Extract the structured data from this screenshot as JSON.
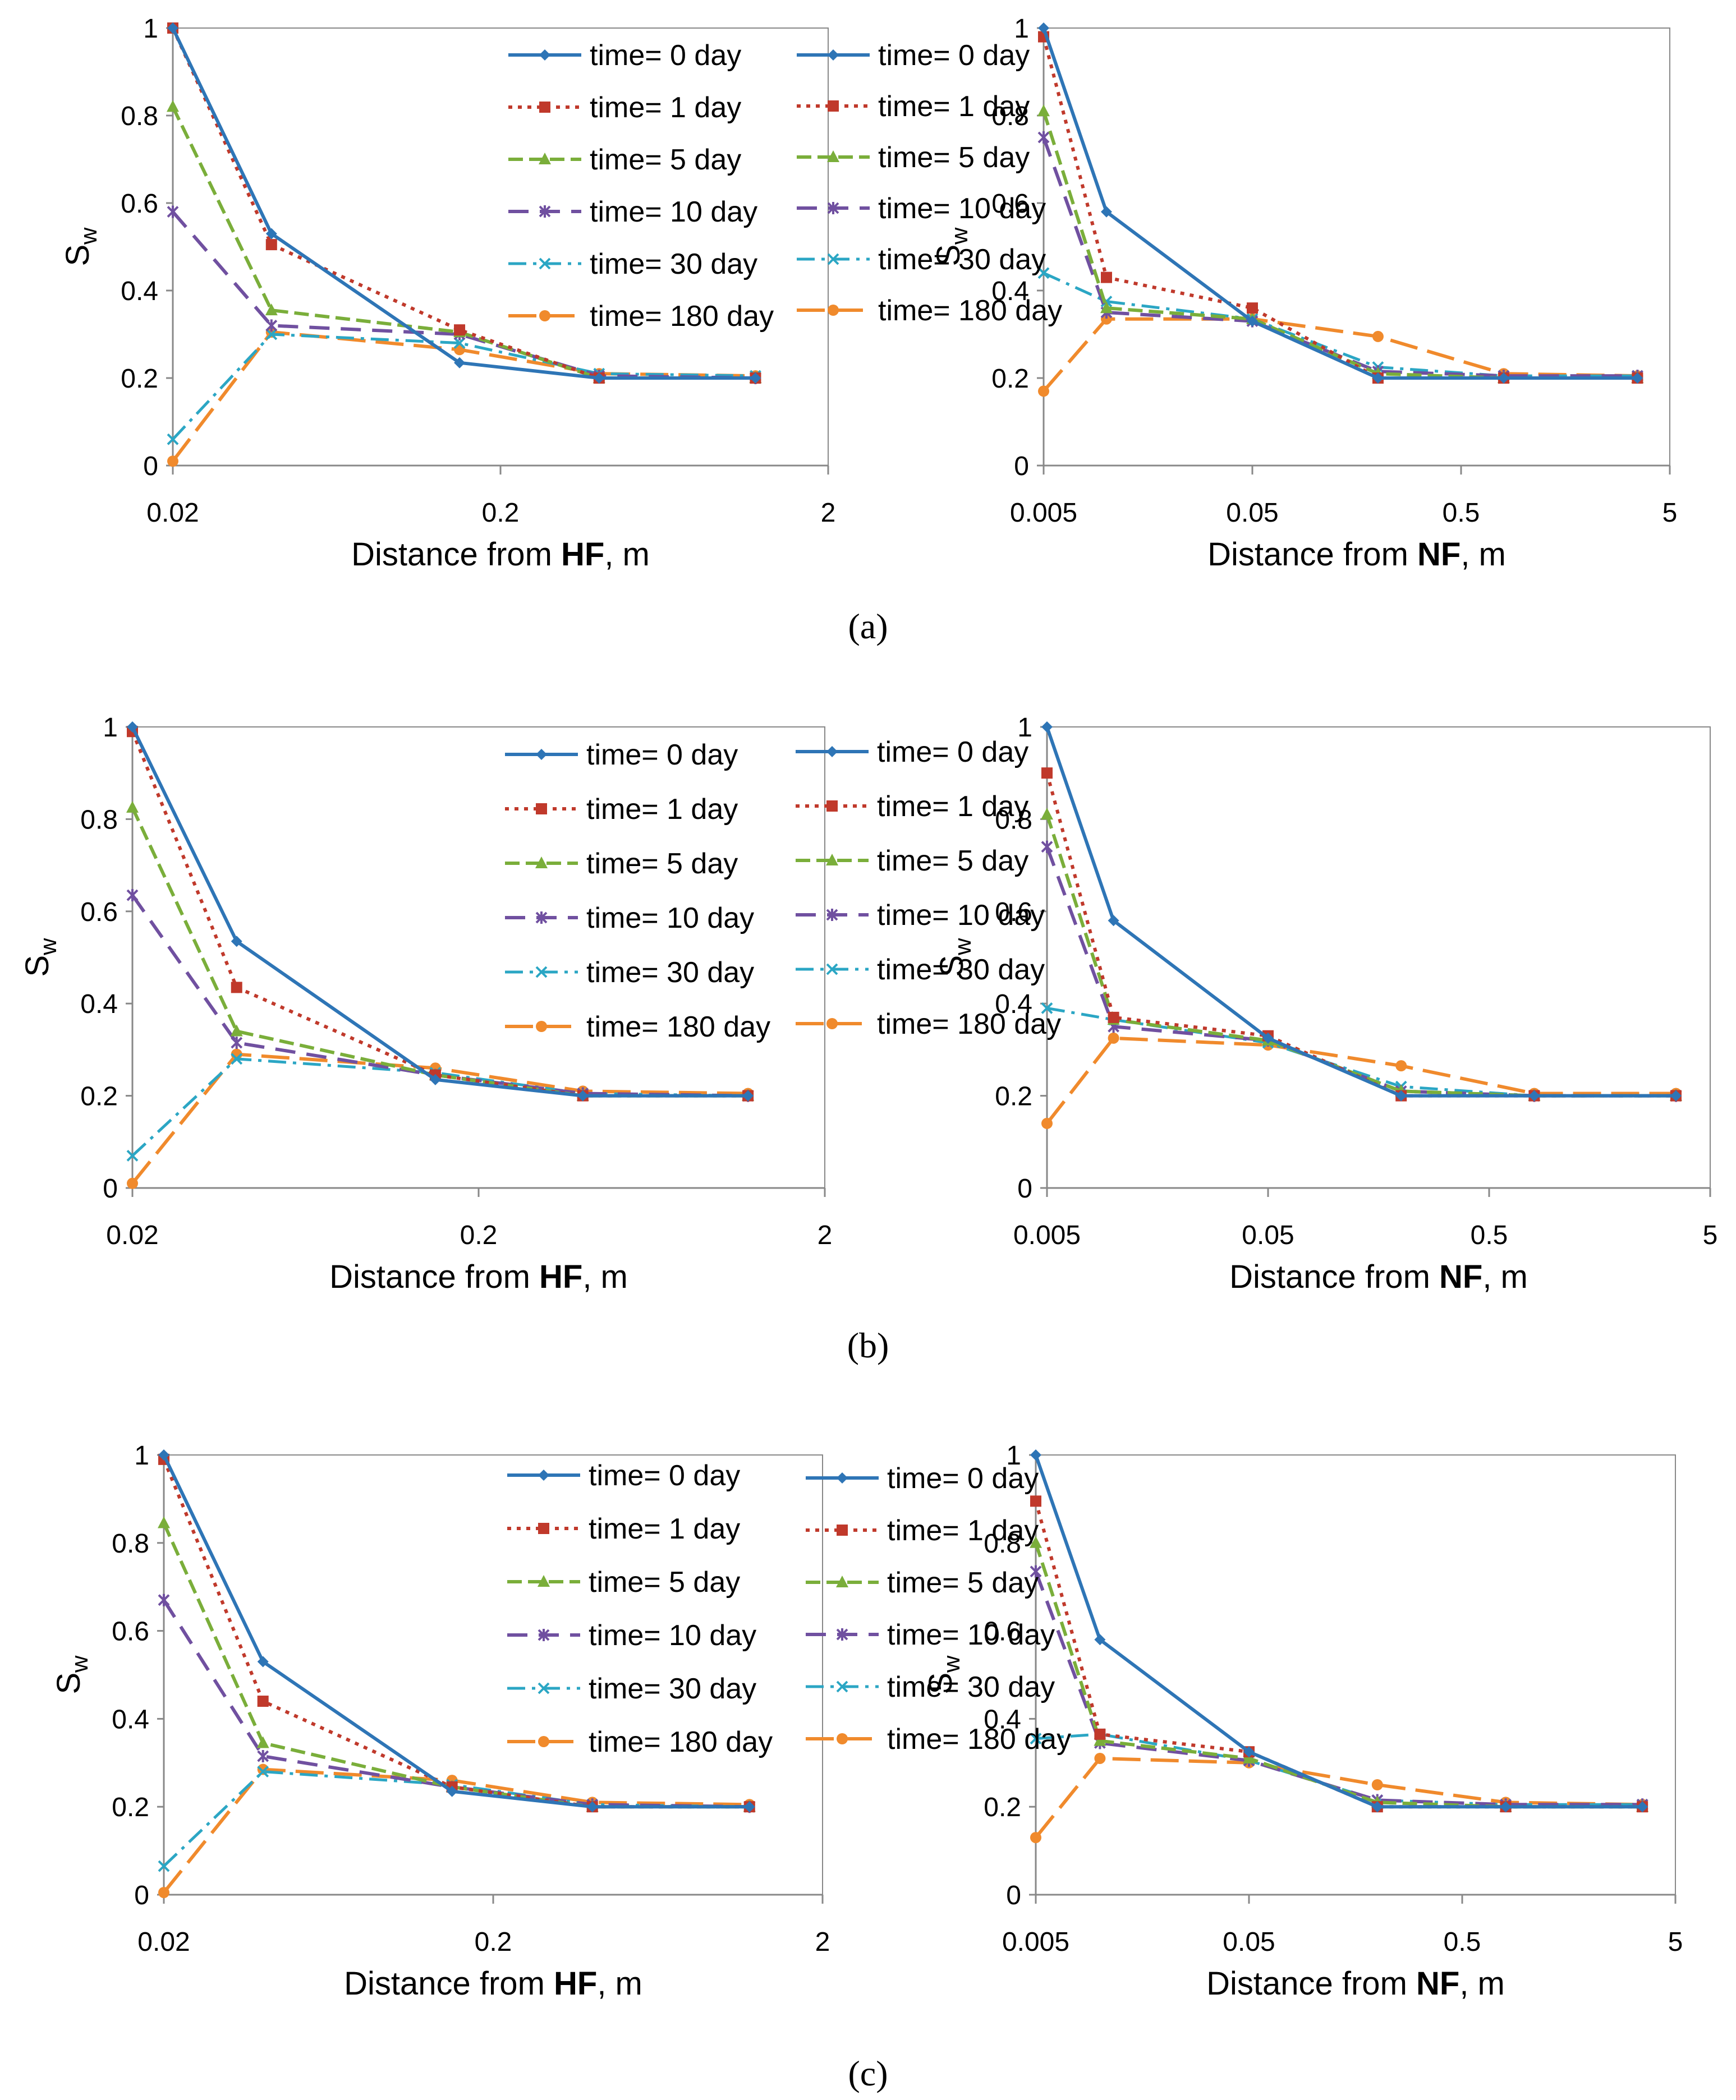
{
  "figure": {
    "panel_labels": [
      "(a)",
      "(b)",
      "(c)"
    ],
    "colors": {
      "t0": "#2E75B6",
      "t1": "#C0392B",
      "t5": "#7AAE3A",
      "t10": "#7050A0",
      "t30": "#2BA6C4",
      "t180": "#F08A2C"
    }
  },
  "chart_data": [
    {
      "id": "a-hf",
      "type": "line",
      "row": "a",
      "xscale": "log",
      "xlim": [
        0.02,
        2
      ],
      "ylim": [
        0,
        1
      ],
      "xticks": [
        "0.02",
        "0.2",
        "2"
      ],
      "yticks": [
        "0",
        "0.2",
        "0.4",
        "0.6",
        "0.8",
        "1"
      ],
      "xlabel_prefix": "Distance from ",
      "xlabel_bold": "HF",
      "xlabel_suffix": ", m",
      "ylabel_main": "S",
      "ylabel_sub": "w",
      "x": [
        0.02,
        0.04,
        0.15,
        0.4,
        1.2
      ],
      "series": [
        {
          "name": "time= 0 day",
          "key": "t0",
          "values": [
            1.0,
            0.53,
            0.235,
            0.2,
            0.2
          ]
        },
        {
          "name": "time= 1 day",
          "key": "t1",
          "values": [
            1.0,
            0.505,
            0.31,
            0.2,
            0.2
          ]
        },
        {
          "name": "time= 5 day",
          "key": "t5",
          "values": [
            0.82,
            0.355,
            0.305,
            0.2,
            0.2
          ]
        },
        {
          "name": "time= 10 day",
          "key": "t10",
          "values": [
            0.58,
            0.32,
            0.3,
            0.205,
            0.2
          ]
        },
        {
          "name": "time= 30 day",
          "key": "t30",
          "values": [
            0.06,
            0.3,
            0.28,
            0.21,
            0.205
          ]
        },
        {
          "name": "time= 180 day",
          "key": "t180",
          "values": [
            0.01,
            0.305,
            0.265,
            0.21,
            0.205
          ]
        }
      ]
    },
    {
      "id": "a-nf",
      "type": "line",
      "row": "a",
      "xscale": "log",
      "xlim": [
        0.005,
        5
      ],
      "ylim": [
        0,
        1
      ],
      "xticks": [
        "0.005",
        "0.05",
        "0.5",
        "5"
      ],
      "yticks": [
        "0",
        "0.2",
        "0.4",
        "0.6",
        "0.8",
        "1"
      ],
      "xlabel_prefix": "Distance from ",
      "xlabel_bold": "NF",
      "xlabel_suffix": ", m",
      "ylabel_main": "S",
      "ylabel_sub": "w",
      "x": [
        0.005,
        0.01,
        0.05,
        0.2,
        0.8,
        3.5
      ],
      "series": [
        {
          "name": "time= 0 day",
          "key": "t0",
          "values": [
            1.0,
            0.58,
            0.33,
            0.2,
            0.2,
            0.2
          ]
        },
        {
          "name": "time= 1 day",
          "key": "t1",
          "values": [
            0.98,
            0.43,
            0.36,
            0.2,
            0.2,
            0.2
          ]
        },
        {
          "name": "time= 5 day",
          "key": "t5",
          "values": [
            0.81,
            0.36,
            0.335,
            0.21,
            0.2,
            0.2
          ]
        },
        {
          "name": "time= 10 day",
          "key": "t10",
          "values": [
            0.75,
            0.35,
            0.33,
            0.215,
            0.205,
            0.205
          ]
        },
        {
          "name": "time= 30 day",
          "key": "t30",
          "values": [
            0.44,
            0.375,
            0.335,
            0.225,
            0.205,
            0.205
          ]
        },
        {
          "name": "time= 180 day",
          "key": "t180",
          "values": [
            0.17,
            0.335,
            0.335,
            0.295,
            0.21,
            0.205
          ]
        }
      ]
    },
    {
      "id": "b-hf",
      "type": "line",
      "row": "b",
      "xscale": "log",
      "xlim": [
        0.02,
        2
      ],
      "ylim": [
        0,
        1
      ],
      "xticks": [
        "0.02",
        "0.2",
        "2"
      ],
      "yticks": [
        "0",
        "0.2",
        "0.4",
        "0.6",
        "0.8",
        "1"
      ],
      "xlabel_prefix": "Distance from ",
      "xlabel_bold": "HF",
      "xlabel_suffix": ", m",
      "ylabel_main": "S",
      "ylabel_sub": "w",
      "x": [
        0.02,
        0.04,
        0.15,
        0.4,
        1.2
      ],
      "series": [
        {
          "name": "time= 0 day",
          "key": "t0",
          "values": [
            1.0,
            0.535,
            0.235,
            0.2,
            0.2
          ]
        },
        {
          "name": "time= 1 day",
          "key": "t1",
          "values": [
            0.99,
            0.435,
            0.245,
            0.2,
            0.2
          ]
        },
        {
          "name": "time= 5 day",
          "key": "t5",
          "values": [
            0.825,
            0.34,
            0.245,
            0.2,
            0.2
          ]
        },
        {
          "name": "time= 10 day",
          "key": "t10",
          "values": [
            0.635,
            0.315,
            0.245,
            0.205,
            0.2
          ]
        },
        {
          "name": "time= 30 day",
          "key": "t30",
          "values": [
            0.07,
            0.28,
            0.25,
            0.205,
            0.2
          ]
        },
        {
          "name": "time= 180 day",
          "key": "t180",
          "values": [
            0.01,
            0.29,
            0.26,
            0.21,
            0.205
          ]
        }
      ]
    },
    {
      "id": "b-nf",
      "type": "line",
      "row": "b",
      "xscale": "log",
      "xlim": [
        0.005,
        5
      ],
      "ylim": [
        0,
        1
      ],
      "xticks": [
        "0.005",
        "0.05",
        "0.5",
        "5"
      ],
      "yticks": [
        "0",
        "0.2",
        "0.4",
        "0.6",
        "0.8",
        "1"
      ],
      "xlabel_prefix": "Distance from ",
      "xlabel_bold": "NF",
      "xlabel_suffix": ", m",
      "ylabel_main": "S",
      "ylabel_sub": "w",
      "x": [
        0.005,
        0.01,
        0.05,
        0.2,
        0.8,
        3.5
      ],
      "series": [
        {
          "name": "time= 0 day",
          "key": "t0",
          "values": [
            1.0,
            0.58,
            0.325,
            0.2,
            0.2,
            0.2
          ]
        },
        {
          "name": "time= 1 day",
          "key": "t1",
          "values": [
            0.9,
            0.37,
            0.33,
            0.2,
            0.2,
            0.2
          ]
        },
        {
          "name": "time= 5 day",
          "key": "t5",
          "values": [
            0.81,
            0.365,
            0.32,
            0.21,
            0.2,
            0.2
          ]
        },
        {
          "name": "time= 10 day",
          "key": "t10",
          "values": [
            0.74,
            0.35,
            0.32,
            0.21,
            0.2,
            0.2
          ]
        },
        {
          "name": "time= 30 day",
          "key": "t30",
          "values": [
            0.39,
            0.365,
            0.315,
            0.22,
            0.2,
            0.2
          ]
        },
        {
          "name": "time= 180 day",
          "key": "t180",
          "values": [
            0.14,
            0.325,
            0.31,
            0.265,
            0.205,
            0.205
          ]
        }
      ]
    },
    {
      "id": "c-hf",
      "type": "line",
      "row": "c",
      "xscale": "log",
      "xlim": [
        0.02,
        2
      ],
      "ylim": [
        0,
        1
      ],
      "xticks": [
        "0.02",
        "0.2",
        "2"
      ],
      "yticks": [
        "0",
        "0.2",
        "0.4",
        "0.6",
        "0.8",
        "1"
      ],
      "xlabel_prefix": "Distance from ",
      "xlabel_bold": "HF",
      "xlabel_suffix": ", m",
      "ylabel_main": "S",
      "ylabel_sub": "w",
      "x": [
        0.02,
        0.04,
        0.15,
        0.4,
        1.2
      ],
      "series": [
        {
          "name": "time= 0 day",
          "key": "t0",
          "values": [
            1.0,
            0.53,
            0.235,
            0.2,
            0.2
          ]
        },
        {
          "name": "time= 1 day",
          "key": "t1",
          "values": [
            0.99,
            0.44,
            0.245,
            0.2,
            0.2
          ]
        },
        {
          "name": "time= 5 day",
          "key": "t5",
          "values": [
            0.845,
            0.345,
            0.245,
            0.2,
            0.2
          ]
        },
        {
          "name": "time= 10 day",
          "key": "t10",
          "values": [
            0.67,
            0.315,
            0.245,
            0.205,
            0.2
          ]
        },
        {
          "name": "time= 30 day",
          "key": "t30",
          "values": [
            0.065,
            0.28,
            0.25,
            0.205,
            0.2
          ]
        },
        {
          "name": "time= 180 day",
          "key": "t180",
          "values": [
            0.005,
            0.285,
            0.26,
            0.21,
            0.205
          ]
        }
      ]
    },
    {
      "id": "c-nf",
      "type": "line",
      "row": "c",
      "xscale": "log",
      "xlim": [
        0.005,
        5
      ],
      "ylim": [
        0,
        1
      ],
      "xticks": [
        "0.005",
        "0.05",
        "0.5",
        "5"
      ],
      "yticks": [
        "0",
        "0.2",
        "0.4",
        "0.6",
        "0.8",
        "1"
      ],
      "xlabel_prefix": "Distance from ",
      "xlabel_bold": "NF",
      "xlabel_suffix": ", m",
      "ylabel_main": "S",
      "ylabel_sub": "w",
      "x": [
        0.005,
        0.01,
        0.05,
        0.2,
        0.8,
        3.5
      ],
      "series": [
        {
          "name": "time= 0 day",
          "key": "t0",
          "values": [
            1.0,
            0.58,
            0.325,
            0.2,
            0.2,
            0.2
          ]
        },
        {
          "name": "time= 1 day",
          "key": "t1",
          "values": [
            0.895,
            0.365,
            0.325,
            0.2,
            0.2,
            0.2
          ]
        },
        {
          "name": "time= 5 day",
          "key": "t5",
          "values": [
            0.8,
            0.35,
            0.31,
            0.21,
            0.2,
            0.2
          ]
        },
        {
          "name": "time= 10 day",
          "key": "t10",
          "values": [
            0.735,
            0.345,
            0.305,
            0.215,
            0.205,
            0.205
          ]
        },
        {
          "name": "time= 30 day",
          "key": "t30",
          "values": [
            0.355,
            0.365,
            0.305,
            0.215,
            0.205,
            0.205
          ]
        },
        {
          "name": "time= 180 day",
          "key": "t180",
          "values": [
            0.13,
            0.31,
            0.3,
            0.25,
            0.21,
            0.205
          ]
        }
      ]
    }
  ]
}
